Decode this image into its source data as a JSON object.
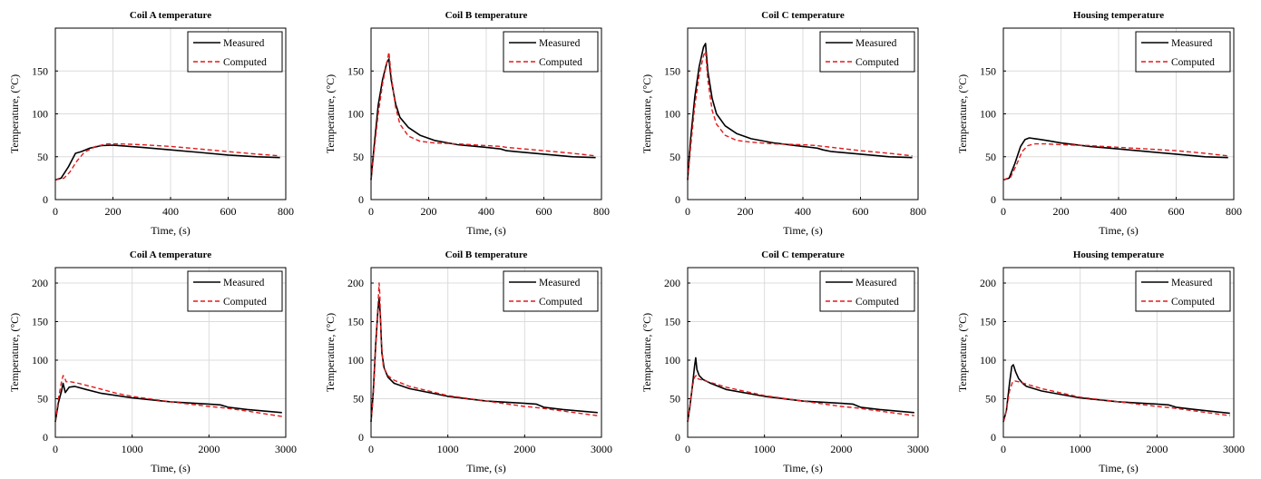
{
  "chart_data": [
    {
      "type": "line",
      "title": "Coil A temperature",
      "xlabel": "Time, (s)",
      "ylabel": "Temperature, (°C)",
      "xlim": [
        0,
        800
      ],
      "ylim": [
        0,
        200
      ],
      "xticks": [
        0,
        200,
        400,
        600,
        800
      ],
      "yticks": [
        0,
        50,
        100,
        150
      ],
      "grid": true,
      "legend": "top-right",
      "series": [
        {
          "name": "Measured",
          "color": "#000000",
          "dash": "solid",
          "x": [
            0,
            20,
            45,
            70,
            90,
            120,
            160,
            200,
            300,
            400,
            500,
            600,
            700,
            780
          ],
          "y": [
            23,
            25,
            38,
            54,
            56,
            60,
            63,
            63.5,
            61,
            58,
            55,
            52,
            50,
            49
          ]
        },
        {
          "name": "Computed",
          "color": "#e31a1c",
          "dash": "dashed",
          "x": [
            0,
            30,
            50,
            75,
            100,
            140,
            180,
            220,
            300,
            400,
            500,
            600,
            700,
            780
          ],
          "y": [
            23,
            25,
            32,
            45,
            55,
            62,
            65,
            65,
            64,
            62,
            59,
            56,
            53,
            51
          ]
        }
      ]
    },
    {
      "type": "line",
      "title": "Coil B temperature",
      "xlabel": "Time, (s)",
      "ylabel": "Temperature, (°C)",
      "xlim": [
        0,
        800
      ],
      "ylim": [
        0,
        200
      ],
      "xticks": [
        0,
        200,
        400,
        600,
        800
      ],
      "yticks": [
        0,
        50,
        100,
        150
      ],
      "grid": true,
      "legend": "top-right",
      "series": [
        {
          "name": "Measured",
          "color": "#000000",
          "dash": "solid",
          "x": [
            0,
            10,
            25,
            40,
            55,
            62,
            70,
            85,
            100,
            130,
            170,
            220,
            300,
            400,
            450,
            470,
            500,
            600,
            700,
            780
          ],
          "y": [
            23,
            60,
            110,
            140,
            160,
            164,
            140,
            112,
            96,
            84,
            75,
            69,
            64,
            61,
            59,
            57,
            56,
            53,
            50,
            49
          ]
        },
        {
          "name": "Computed",
          "color": "#e31a1c",
          "dash": "dashed",
          "x": [
            0,
            10,
            25,
            40,
            55,
            62,
            70,
            85,
            100,
            130,
            170,
            220,
            300,
            400,
            450,
            470,
            500,
            600,
            700,
            780
          ],
          "y": [
            23,
            55,
            100,
            135,
            160,
            172,
            145,
            108,
            88,
            74,
            68,
            66,
            65,
            63,
            62,
            61,
            60,
            57,
            54,
            51
          ]
        }
      ]
    },
    {
      "type": "line",
      "title": "Coil C temperature",
      "xlabel": "Time, (s)",
      "ylabel": "Temperature, (°C)",
      "xlim": [
        0,
        800
      ],
      "ylim": [
        0,
        200
      ],
      "xticks": [
        0,
        200,
        400,
        600,
        800
      ],
      "yticks": [
        0,
        50,
        100,
        150
      ],
      "grid": true,
      "legend": "top-right",
      "series": [
        {
          "name": "Measured",
          "color": "#000000",
          "dash": "solid",
          "x": [
            0,
            10,
            25,
            40,
            55,
            62,
            70,
            85,
            100,
            130,
            170,
            220,
            300,
            400,
            450,
            470,
            500,
            600,
            700,
            780
          ],
          "y": [
            23,
            70,
            120,
            155,
            178,
            182,
            150,
            118,
            100,
            86,
            77,
            71,
            66,
            62,
            60,
            58,
            56,
            53,
            50,
            49
          ]
        },
        {
          "name": "Computed",
          "color": "#e31a1c",
          "dash": "dashed",
          "x": [
            0,
            10,
            25,
            40,
            55,
            62,
            70,
            85,
            100,
            130,
            170,
            220,
            300,
            400,
            450,
            470,
            500,
            600,
            700,
            780
          ],
          "y": [
            23,
            60,
            110,
            145,
            168,
            173,
            140,
            104,
            88,
            75,
            69,
            67,
            65,
            64,
            63,
            62,
            61,
            57,
            54,
            51
          ]
        }
      ]
    },
    {
      "type": "line",
      "title": "Housing temperature",
      "xlabel": "Time, (s)",
      "ylabel": "Temperature, (°C)",
      "xlim": [
        0,
        800
      ],
      "ylim": [
        0,
        200
      ],
      "xticks": [
        0,
        200,
        400,
        600,
        800
      ],
      "yticks": [
        0,
        50,
        100,
        150
      ],
      "grid": true,
      "legend": "top-right",
      "series": [
        {
          "name": "Measured",
          "color": "#000000",
          "dash": "solid",
          "x": [
            0,
            20,
            40,
            60,
            75,
            90,
            110,
            150,
            200,
            300,
            400,
            500,
            600,
            700,
            780
          ],
          "y": [
            23,
            25,
            42,
            62,
            70,
            72,
            71,
            69,
            66,
            62,
            59,
            56,
            53,
            50,
            49
          ]
        },
        {
          "name": "Computed",
          "color": "#e31a1c",
          "dash": "dashed",
          "x": [
            0,
            25,
            45,
            65,
            85,
            110,
            150,
            200,
            300,
            400,
            500,
            600,
            700,
            780
          ],
          "y": [
            23,
            26,
            40,
            56,
            63,
            65,
            65,
            64,
            63,
            61,
            59,
            57,
            54,
            51
          ]
        }
      ]
    },
    {
      "type": "line",
      "title": "Coil A temperature",
      "xlabel": "Time, (s)",
      "ylabel": "Temperature, (°C)",
      "xlim": [
        0,
        3000
      ],
      "ylim": [
        0,
        220
      ],
      "xticks": [
        0,
        1000,
        2000,
        3000
      ],
      "yticks": [
        0,
        50,
        100,
        150,
        200
      ],
      "grid": true,
      "legend": "top-right",
      "series": [
        {
          "name": "Measured",
          "color": "#000000",
          "dash": "solid",
          "x": [
            0,
            40,
            80,
            100,
            130,
            180,
            250,
            400,
            600,
            1000,
            1500,
            2000,
            2150,
            2250,
            2500,
            2950
          ],
          "y": [
            20,
            45,
            60,
            70,
            58,
            65,
            66,
            62,
            57,
            51,
            46,
            43,
            42,
            39,
            36,
            32
          ]
        },
        {
          "name": "Computed",
          "color": "#e31a1c",
          "dash": "dashed",
          "x": [
            0,
            40,
            80,
            100,
            115,
            140,
            200,
            300,
            500,
            800,
            1000,
            1500,
            2000,
            2200,
            2500,
            2950
          ],
          "y": [
            20,
            50,
            72,
            80,
            79,
            72,
            72,
            70,
            65,
            57,
            53,
            46,
            40,
            38,
            34,
            27
          ]
        }
      ]
    },
    {
      "type": "line",
      "title": "Coil B temperature",
      "xlabel": "Time, (s)",
      "ylabel": "Temperature, (°C)",
      "xlim": [
        0,
        3000
      ],
      "ylim": [
        0,
        220
      ],
      "xticks": [
        0,
        1000,
        2000,
        3000
      ],
      "yticks": [
        0,
        50,
        100,
        150,
        200
      ],
      "grid": true,
      "legend": "top-right",
      "series": [
        {
          "name": "Measured",
          "color": "#000000",
          "dash": "solid",
          "x": [
            0,
            30,
            60,
            90,
            105,
            120,
            140,
            170,
            220,
            300,
            500,
            1000,
            1500,
            2000,
            2150,
            2250,
            2500,
            2950
          ],
          "y": [
            20,
            60,
            120,
            165,
            180,
            160,
            110,
            90,
            78,
            70,
            63,
            53,
            47,
            44,
            43,
            39,
            36,
            32
          ]
        },
        {
          "name": "Computed",
          "color": "#e31a1c",
          "dash": "dashed",
          "x": [
            0,
            30,
            60,
            90,
            105,
            115,
            130,
            160,
            220,
            300,
            500,
            1000,
            1500,
            2000,
            2200,
            2500,
            2950
          ],
          "y": [
            20,
            55,
            115,
            170,
            200,
            185,
            130,
            92,
            80,
            74,
            66,
            54,
            47,
            40,
            38,
            34,
            28
          ]
        }
      ]
    },
    {
      "type": "line",
      "title": "Coil C temperature",
      "xlabel": "Time, (s)",
      "ylabel": "Temperature, (°C)",
      "xlim": [
        0,
        3000
      ],
      "ylim": [
        0,
        220
      ],
      "xticks": [
        0,
        1000,
        2000,
        3000
      ],
      "yticks": [
        0,
        50,
        100,
        150,
        200
      ],
      "grid": true,
      "legend": "top-right",
      "series": [
        {
          "name": "Measured",
          "color": "#000000",
          "dash": "solid",
          "x": [
            0,
            30,
            60,
            90,
            105,
            120,
            150,
            200,
            300,
            500,
            1000,
            1500,
            2000,
            2150,
            2250,
            2500,
            2950
          ],
          "y": [
            20,
            40,
            65,
            92,
            103,
            88,
            80,
            75,
            70,
            62,
            53,
            47,
            44,
            43,
            39,
            36,
            32
          ]
        },
        {
          "name": "Computed",
          "color": "#e31a1c",
          "dash": "dashed",
          "x": [
            0,
            30,
            60,
            90,
            110,
            130,
            200,
            300,
            500,
            1000,
            1500,
            2000,
            2200,
            2500,
            2950
          ],
          "y": [
            20,
            42,
            65,
            78,
            80,
            76,
            74,
            71,
            65,
            54,
            47,
            40,
            38,
            34,
            28
          ]
        }
      ]
    },
    {
      "type": "line",
      "title": "Housing temperature",
      "xlabel": "Time, (s)",
      "ylabel": "Temperature, (°C)",
      "xlim": [
        0,
        3000
      ],
      "ylim": [
        0,
        220
      ],
      "xticks": [
        0,
        1000,
        2000,
        3000
      ],
      "yticks": [
        0,
        50,
        100,
        150,
        200
      ],
      "grid": true,
      "legend": "top-right",
      "series": [
        {
          "name": "Measured",
          "color": "#000000",
          "dash": "solid",
          "x": [
            0,
            40,
            80,
            110,
            130,
            160,
            200,
            250,
            300,
            500,
            1000,
            1500,
            2000,
            2150,
            2250,
            2500,
            2950
          ],
          "y": [
            20,
            35,
            70,
            92,
            94,
            85,
            76,
            70,
            66,
            60,
            51,
            46,
            43,
            42,
            39,
            36,
            31
          ]
        },
        {
          "name": "Computed",
          "color": "#e31a1c",
          "dash": "dashed",
          "x": [
            0,
            40,
            80,
            120,
            150,
            200,
            300,
            500,
            1000,
            1500,
            2000,
            2200,
            2500,
            2950
          ],
          "y": [
            20,
            35,
            60,
            72,
            73,
            72,
            69,
            63,
            52,
            46,
            40,
            38,
            34,
            28
          ]
        }
      ]
    }
  ]
}
